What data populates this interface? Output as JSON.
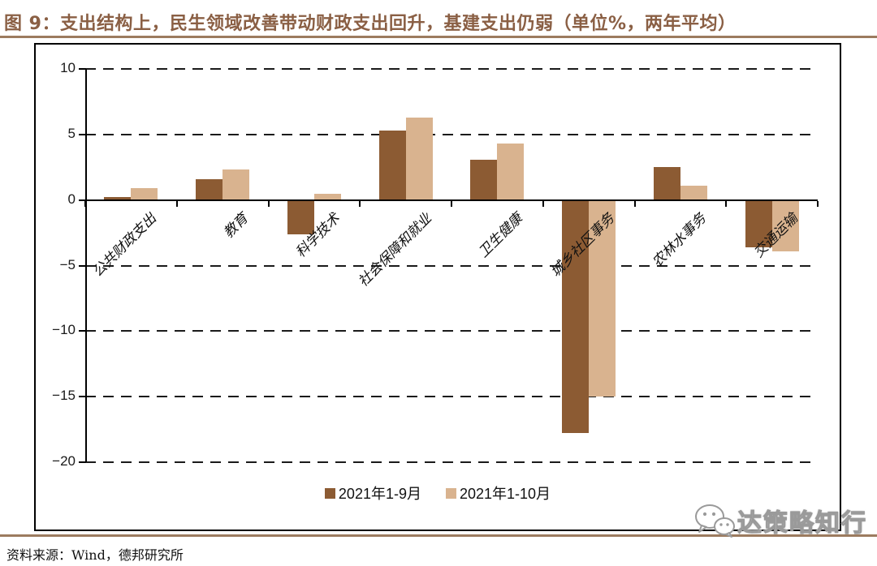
{
  "header": {
    "title": "图 9：支出结构上，民生领域改善带动财政支出回升，基建支出仍弱（单位%，两年平均）"
  },
  "footer": {
    "source": "资料来源：Wind，德邦研究所",
    "watermark": "达策略知行"
  },
  "colors": {
    "title_brown": "#8A5F44",
    "rule_brown": "#9C7B5F",
    "series1_dark_brown": "#8C5B33",
    "series2_light_tan": "#D9B38F"
  },
  "chart_data": {
    "type": "bar",
    "categories": [
      "公共财政支出",
      "教育",
      "科学技术",
      "社会保障和就业",
      "卫生健康",
      "城乡社区事务",
      "农林水事务",
      "交通运输"
    ],
    "series": [
      {
        "name": "2021年1-9月",
        "color": "#8C5B33",
        "values": [
          0.2,
          1.6,
          -2.6,
          5.3,
          3.1,
          -17.8,
          2.5,
          -3.6
        ]
      },
      {
        "name": "2021年1-10月",
        "color": "#D9B38F",
        "values": [
          0.9,
          2.3,
          0.5,
          6.3,
          4.3,
          -15.0,
          1.1,
          -3.9
        ]
      }
    ],
    "title": "支出结构（单位%，两年平均）",
    "xlabel": "",
    "ylabel": "",
    "ylim": [
      -20,
      10
    ],
    "yticks": [
      10,
      5,
      0,
      -5,
      -10,
      -15,
      -20
    ],
    "grid": "horizontal dashed",
    "legend_position": "bottom center"
  }
}
